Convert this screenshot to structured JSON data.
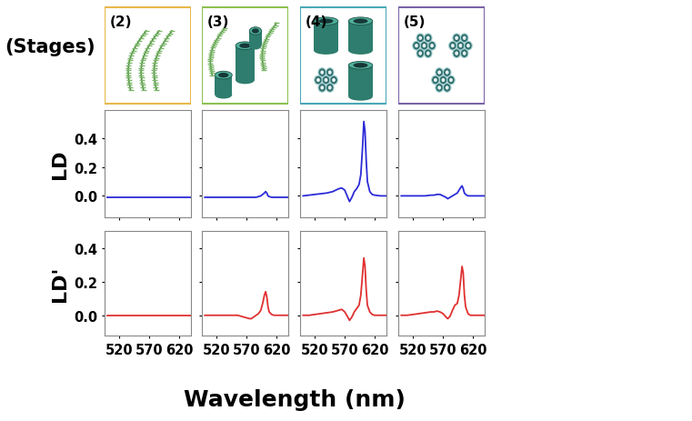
{
  "header": {
    "title": "(Stages)",
    "stages": [
      "(2)",
      "(3)",
      "(4)",
      "(5)"
    ]
  },
  "x_label": "Wavelength (nm)",
  "chart_data": [
    {
      "type": "line",
      "y_label": "LD",
      "color": "#2b2bd8",
      "tick_labels": "y",
      "x": [
        500,
        510,
        520,
        530,
        540,
        550,
        555,
        560,
        565,
        570,
        575,
        578,
        582,
        586,
        590,
        594,
        597,
        600,
        602,
        604,
        606,
        608,
        612,
        616,
        620,
        630,
        640
      ],
      "values": [
        -0.01,
        -0.01,
        -0.01,
        -0.01,
        -0.01,
        -0.01,
        -0.01,
        -0.01,
        -0.01,
        -0.01,
        -0.01,
        -0.01,
        -0.01,
        -0.01,
        -0.01,
        -0.01,
        -0.01,
        -0.01,
        -0.01,
        -0.01,
        -0.01,
        -0.01,
        -0.01,
        -0.01,
        -0.01,
        -0.01,
        -0.01
      ],
      "xlim": [
        495,
        640
      ],
      "ylim": [
        -0.15,
        0.6
      ],
      "xticks": [
        520,
        570,
        620
      ],
      "yticks": [
        0.0,
        0.2,
        0.4
      ]
    },
    {
      "type": "line",
      "color": "#2b2bd8",
      "tick_labels": false,
      "x": [
        500,
        510,
        520,
        530,
        540,
        550,
        555,
        560,
        565,
        570,
        575,
        578,
        582,
        586,
        590,
        594,
        597,
        600,
        602,
        604,
        606,
        608,
        612,
        616,
        620,
        630,
        640
      ],
      "values": [
        -0.01,
        -0.01,
        -0.01,
        -0.01,
        -0.01,
        -0.01,
        -0.01,
        -0.01,
        -0.01,
        -0.01,
        -0.01,
        -0.01,
        -0.01,
        -0.01,
        -0.005,
        0.0,
        0.01,
        0.02,
        0.03,
        0.02,
        0.0,
        -0.005,
        -0.01,
        -0.01,
        -0.01,
        -0.01,
        -0.01
      ],
      "xlim": [
        495,
        640
      ],
      "ylim": [
        -0.15,
        0.6
      ],
      "xticks": [
        520,
        570,
        620
      ],
      "yticks": [
        0.0,
        0.2,
        0.4
      ]
    },
    {
      "type": "line",
      "color": "#2b2bd8",
      "tick_labels": false,
      "x": [
        500,
        510,
        520,
        530,
        540,
        550,
        555,
        560,
        565,
        570,
        575,
        578,
        582,
        586,
        590,
        594,
        597,
        600,
        602,
        604,
        606,
        608,
        612,
        616,
        620,
        630,
        640
      ],
      "values": [
        0.0,
        0.005,
        0.01,
        0.015,
        0.02,
        0.03,
        0.04,
        0.05,
        0.055,
        0.04,
        -0.01,
        -0.04,
        -0.01,
        0.03,
        0.05,
        0.08,
        0.15,
        0.35,
        0.52,
        0.45,
        0.25,
        0.1,
        0.03,
        0.01,
        0.005,
        0.0,
        0.0
      ],
      "xlim": [
        495,
        640
      ],
      "ylim": [
        -0.15,
        0.6
      ],
      "xticks": [
        520,
        570,
        620
      ],
      "yticks": [
        0.0,
        0.2,
        0.4
      ]
    },
    {
      "type": "line",
      "color": "#2b2bd8",
      "tick_labels": false,
      "x": [
        500,
        510,
        520,
        530,
        540,
        550,
        555,
        560,
        565,
        570,
        575,
        578,
        582,
        586,
        590,
        594,
        597,
        600,
        602,
        604,
        606,
        608,
        612,
        616,
        620,
        630,
        640
      ],
      "values": [
        0.0,
        0.0,
        0.0,
        0.0,
        0.0,
        0.005,
        0.005,
        0.01,
        0.01,
        0.0,
        -0.01,
        -0.02,
        -0.01,
        0.0,
        0.01,
        0.02,
        0.04,
        0.06,
        0.07,
        0.05,
        0.02,
        0.01,
        0.0,
        0.0,
        0.0,
        0.0,
        0.0
      ],
      "xlim": [
        495,
        640
      ],
      "ylim": [
        -0.15,
        0.6
      ],
      "xticks": [
        520,
        570,
        620
      ],
      "yticks": [
        0.0,
        0.2,
        0.4
      ]
    },
    {
      "type": "line",
      "y_label": "LD'",
      "color": "#e03030",
      "x": [
        500,
        510,
        520,
        530,
        540,
        550,
        555,
        560,
        565,
        570,
        575,
        578,
        582,
        586,
        590,
        594,
        597,
        600,
        602,
        604,
        606,
        608,
        612,
        616,
        620,
        630,
        640
      ],
      "values": [
        0.0,
        0.0,
        0.0,
        0.0,
        0.0,
        0.0,
        0.0,
        0.0,
        0.0,
        0.0,
        0.0,
        0.0,
        0.0,
        0.0,
        0.0,
        0.0,
        0.0,
        0.0,
        0.0,
        0.0,
        0.0,
        0.0,
        0.0,
        0.0,
        0.0,
        0.0,
        0.0
      ],
      "xlim": [
        495,
        640
      ],
      "ylim": [
        -0.12,
        0.5
      ],
      "xticks": [
        520,
        570,
        620
      ],
      "yticks": [
        0.0,
        0.2,
        0.4
      ]
    },
    {
      "type": "line",
      "color": "#e03030",
      "tick_labels": "x",
      "x": [
        500,
        510,
        520,
        530,
        540,
        550,
        555,
        560,
        565,
        570,
        575,
        578,
        582,
        586,
        590,
        594,
        597,
        600,
        602,
        604,
        606,
        608,
        612,
        616,
        620,
        630,
        640
      ],
      "values": [
        0.0,
        0.0,
        0.0,
        0.0,
        0.0,
        0.0,
        0.0,
        -0.005,
        -0.01,
        -0.015,
        -0.02,
        -0.02,
        -0.01,
        0.0,
        0.01,
        0.03,
        0.07,
        0.12,
        0.14,
        0.11,
        0.05,
        0.02,
        0.005,
        0.0,
        0.0,
        0.0,
        0.0
      ],
      "xlim": [
        495,
        640
      ],
      "ylim": [
        -0.12,
        0.5
      ],
      "xticks": [
        520,
        570,
        620
      ],
      "yticks": [
        0.0,
        0.2,
        0.4
      ]
    },
    {
      "type": "line",
      "color": "#e03030",
      "tick_labels": "x",
      "x": [
        500,
        510,
        520,
        530,
        540,
        550,
        555,
        560,
        565,
        570,
        575,
        578,
        582,
        586,
        590,
        594,
        597,
        600,
        602,
        604,
        606,
        608,
        612,
        616,
        620,
        630,
        640
      ],
      "values": [
        0.0,
        0.0,
        0.005,
        0.01,
        0.015,
        0.02,
        0.025,
        0.03,
        0.035,
        0.02,
        -0.01,
        -0.03,
        -0.01,
        0.02,
        0.04,
        0.06,
        0.12,
        0.25,
        0.34,
        0.29,
        0.15,
        0.06,
        0.02,
        0.005,
        0.0,
        0.0,
        0.0
      ],
      "xlim": [
        495,
        640
      ],
      "ylim": [
        -0.12,
        0.5
      ],
      "xticks": [
        520,
        570,
        620
      ],
      "yticks": [
        0.0,
        0.2,
        0.4
      ]
    },
    {
      "type": "line",
      "color": "#e03030",
      "tick_labels": "x",
      "x": [
        500,
        510,
        520,
        530,
        540,
        550,
        555,
        560,
        565,
        570,
        575,
        578,
        582,
        586,
        590,
        594,
        597,
        600,
        602,
        604,
        606,
        608,
        612,
        616,
        620,
        630,
        640
      ],
      "values": [
        0.0,
        0.0,
        0.005,
        0.01,
        0.015,
        0.02,
        0.02,
        0.025,
        0.02,
        0.01,
        -0.01,
        -0.02,
        -0.005,
        0.03,
        0.06,
        0.07,
        0.12,
        0.22,
        0.29,
        0.25,
        0.12,
        0.05,
        0.01,
        0.0,
        0.0,
        0.0,
        0.0
      ],
      "xlim": [
        495,
        640
      ],
      "ylim": [
        -0.12,
        0.5
      ],
      "xticks": [
        520,
        570,
        620
      ],
      "yticks": [
        0.0,
        0.2,
        0.4
      ]
    }
  ]
}
